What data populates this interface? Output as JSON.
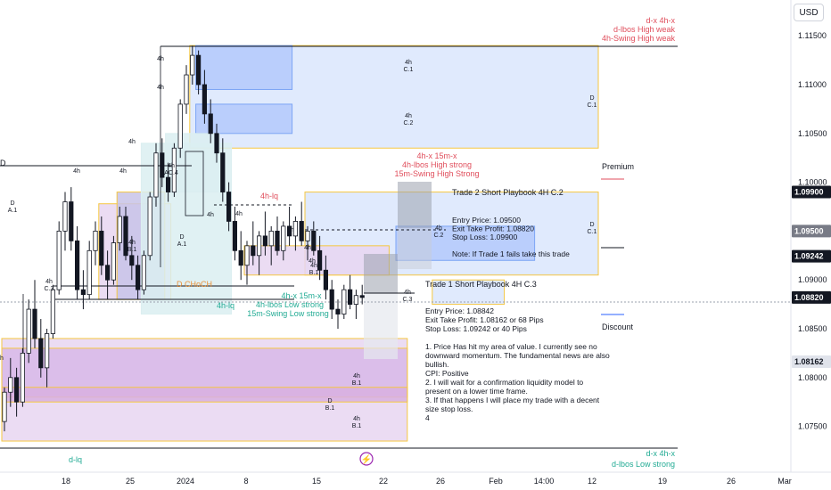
{
  "currency": "USD",
  "chart_data": {
    "type": "candlestick",
    "y_ticks": [
      1.115,
      1.11,
      1.105,
      1.1,
      1.095,
      1.09,
      1.085,
      1.08,
      1.075
    ],
    "y_tick_labels": [
      "1.11500",
      "1.11000",
      "1.10500",
      "1.10000",
      "1.09500",
      "1.09000",
      "1.08500",
      "1.08000",
      "1.07500"
    ],
    "x_ticks": [
      "18",
      "25",
      "2024",
      "8",
      "15",
      "22",
      "26",
      "Feb",
      "14:00",
      "12",
      "19",
      "26",
      "Mar"
    ],
    "price_labels": [
      {
        "value": "1.09900",
        "price": 1.099,
        "color": "#131722"
      },
      {
        "value": "1.09500",
        "price": 1.095,
        "color": "#787b86"
      },
      {
        "value": "1.09242",
        "price": 1.09242,
        "color": "#131722"
      },
      {
        "value": "1.08820",
        "price": 1.0882,
        "color": "#131722"
      },
      {
        "value": "1.08162",
        "price": 1.08162,
        "color": "#e0e3eb"
      }
    ],
    "candles": [
      [
        1.0755,
        1.079,
        1.0745,
        1.0785
      ],
      [
        1.0785,
        1.082,
        1.077,
        1.08
      ],
      [
        1.08,
        1.081,
        1.076,
        1.0775
      ],
      [
        1.0775,
        1.083,
        1.077,
        1.0825
      ],
      [
        1.0825,
        1.088,
        1.0815,
        1.087
      ],
      [
        1.087,
        1.09,
        1.083,
        1.084
      ],
      [
        1.084,
        1.086,
        1.08,
        1.081
      ],
      [
        1.081,
        1.085,
        1.079,
        1.0845
      ],
      [
        1.0845,
        1.0895,
        1.084,
        1.089
      ],
      [
        1.089,
        1.096,
        1.0885,
        1.095
      ],
      [
        1.095,
        1.099,
        1.093,
        1.098
      ],
      [
        1.098,
        1.0995,
        1.093,
        1.094
      ],
      [
        1.094,
        1.0955,
        1.088,
        1.089
      ],
      [
        1.089,
        1.091,
        1.087,
        1.0885
      ],
      [
        1.0885,
        1.094,
        1.088,
        1.093
      ],
      [
        1.093,
        1.096,
        1.0915,
        1.095
      ],
      [
        1.095,
        1.0965,
        1.0905,
        1.0915
      ],
      [
        1.0915,
        1.093,
        1.088,
        1.09
      ],
      [
        1.09,
        1.0945,
        1.0895,
        1.0938
      ],
      [
        1.0938,
        1.0975,
        1.093,
        1.0965
      ],
      [
        1.0965,
        1.0975,
        1.092,
        1.0925
      ],
      [
        1.0925,
        1.0945,
        1.09,
        1.0915
      ],
      [
        1.0915,
        1.0925,
        1.088,
        1.089
      ],
      [
        1.089,
        1.093,
        1.0885,
        1.0925
      ],
      [
        1.0925,
        1.099,
        1.092,
        1.0985
      ],
      [
        1.0985,
        1.104,
        1.0975,
        1.103
      ],
      [
        1.103,
        1.1045,
        1.0995,
        1.1005
      ],
      [
        1.1005,
        1.102,
        1.098,
        1.099
      ],
      [
        1.099,
        1.104,
        1.0985,
        1.1035
      ],
      [
        1.1035,
        1.1085,
        1.1025,
        1.108
      ],
      [
        1.108,
        1.112,
        1.107,
        1.111
      ],
      [
        1.111,
        1.114,
        1.11,
        1.113
      ],
      [
        1.113,
        1.1135,
        1.109,
        1.11
      ],
      [
        1.11,
        1.1115,
        1.106,
        1.107
      ],
      [
        1.107,
        1.1085,
        1.104,
        1.105
      ],
      [
        1.105,
        1.106,
        1.102,
        1.103
      ],
      [
        1.103,
        1.1045,
        1.098,
        1.099
      ],
      [
        1.099,
        1.1,
        1.095,
        1.096
      ],
      [
        1.096,
        1.0975,
        1.092,
        1.093
      ],
      [
        1.093,
        1.095,
        1.09,
        1.0915
      ],
      [
        1.0915,
        1.094,
        1.0895,
        1.0935
      ],
      [
        1.0935,
        1.096,
        1.0915,
        1.0925
      ],
      [
        1.0925,
        1.095,
        1.0905,
        1.0945
      ],
      [
        1.0945,
        1.097,
        1.0925,
        1.0935
      ],
      [
        1.0935,
        1.0955,
        1.0915,
        1.095
      ],
      [
        1.095,
        1.0965,
        1.0925,
        1.093
      ],
      [
        1.093,
        1.096,
        1.092,
        1.0955
      ],
      [
        1.0955,
        1.0975,
        1.0935,
        1.0945
      ],
      [
        1.0945,
        1.0965,
        1.093,
        1.096
      ],
      [
        1.096,
        1.098,
        1.0935,
        1.094
      ],
      [
        1.094,
        1.0955,
        1.092,
        1.095
      ],
      [
        1.095,
        1.096,
        1.0925,
        1.093
      ],
      [
        1.093,
        1.0945,
        1.09,
        1.091
      ],
      [
        1.091,
        1.0925,
        1.088,
        1.089
      ],
      [
        1.089,
        1.09,
        1.086,
        1.087
      ],
      [
        1.087,
        1.088,
        1.085,
        1.0865
      ],
      [
        1.0865,
        1.0895,
        1.086,
        1.089
      ],
      [
        1.089,
        1.0905,
        1.087,
        1.0875
      ],
      [
        1.0875,
        1.089,
        1.086,
        1.0884
      ],
      [
        1.0884,
        1.0895,
        1.0875,
        1.0882
      ]
    ],
    "zones": [
      {
        "p1": 1.114,
        "p2": 1.1035,
        "i1": 31,
        "i2": "end",
        "fill": "#dbe6fd",
        "stroke": "#f5c742"
      },
      {
        "p1": 1.114,
        "p2": 1.1095,
        "i1": 32,
        "i2": 47,
        "fill": "#b3c9fb",
        "stroke": "#7da5f5"
      },
      {
        "p1": 1.108,
        "p2": 1.105,
        "i1": 32,
        "i2": 47,
        "fill": "#b3c9fb",
        "stroke": "#7da5f5"
      },
      {
        "p1": 1.099,
        "p2": 1.0905,
        "i1": 50,
        "i2": "end",
        "fill": "#dbe6fd",
        "stroke": "#f5c742"
      },
      {
        "p1": 1.0955,
        "p2": 1.092,
        "i1": 65,
        "i2": 87,
        "fill": "#b3c9fb",
        "stroke": "#7da5f5"
      },
      {
        "p1": 1.09,
        "p2": 1.0875,
        "i1": 71,
        "i2": 82,
        "fill": "#dbe6fd",
        "stroke": "#f5c742"
      },
      {
        "p1": 1.0978,
        "p2": 1.088,
        "i1": 16,
        "i2": 27,
        "fill": "#e8d6f1",
        "stroke": "#f5c742"
      },
      {
        "p1": 1.099,
        "p2": 1.088,
        "i1": 19,
        "i2": 26,
        "fill": "#c8c3e8",
        "stroke": "#f5c742"
      },
      {
        "p1": 1.104,
        "p2": 1.0865,
        "i1": 23,
        "i2": 37,
        "fill": "#dbeff1",
        "stroke": "#dbeff1"
      },
      {
        "p1": 1.105,
        "p2": 1.099,
        "i1": 27,
        "i2": 35,
        "fill": "#dbeff1",
        "stroke": "#dbeff1"
      },
      {
        "p1": 1.0935,
        "p2": 1.0905,
        "i1": 40,
        "i2": 63,
        "fill": "#e8d6f1",
        "stroke": "#f5c742"
      },
      {
        "p1": 1.084,
        "p2": 1.0735,
        "i1": 0,
        "i2": 66,
        "fill": "#e8d6f1",
        "stroke": "#f5c742"
      },
      {
        "p1": 1.083,
        "p2": 1.078,
        "i1": 0,
        "i2": 66,
        "fill": "#d8b8e8",
        "stroke": "#f5c742"
      },
      {
        "p1": 1.079,
        "p2": 1.0775,
        "i1": 0,
        "i2": 66,
        "fill": "#d8b0e0",
        "stroke": "#f5c742"
      }
    ],
    "annotations": [
      {
        "text": "d-x      4h-x",
        "color": "#e04e5c",
        "anchor": "end"
      },
      {
        "text": "d-lbos High weak",
        "color": "#e04e5c",
        "anchor": "end"
      },
      {
        "text": "4h-Swing High weak",
        "color": "#e04e5c",
        "anchor": "end"
      },
      {
        "text": "4h-x      15m-x",
        "color": "#e04e5c",
        "anchor": "middle"
      },
      {
        "text": "4h-lbos High strong",
        "color": "#e04e5c",
        "anchor": "middle"
      },
      {
        "text": "15m-Swing High Strong",
        "color": "#e04e5c",
        "anchor": "middle"
      },
      {
        "text": "4h-lq",
        "color": "#e04e5c",
        "anchor": "start"
      },
      {
        "text": "D CHoCH",
        "color": "#e8913a",
        "anchor": "start"
      },
      {
        "text": "4h-lq",
        "color": "#22ab94",
        "anchor": "start"
      },
      {
        "text": "4h-x      15m-x",
        "color": "#22ab94",
        "anchor": "middle"
      },
      {
        "text": "4h-lbos Low strong",
        "color": "#22ab94",
        "anchor": "middle"
      },
      {
        "text": "15m-Swing Low strong",
        "color": "#22ab94",
        "anchor": "middle"
      },
      {
        "text": "d-x      4h-x",
        "color": "#22ab94",
        "anchor": "end"
      },
      {
        "text": "d-lbos Low strong",
        "color": "#22ab94",
        "anchor": "end"
      },
      {
        "text": "d-lq",
        "color": "#22ab94",
        "anchor": "start"
      },
      {
        "text": "Premium",
        "color": "#131722",
        "anchor": "start"
      },
      {
        "text": "Discount",
        "color": "#131722",
        "anchor": "start"
      },
      {
        "text": "D",
        "color": "#131722",
        "anchor": "start"
      }
    ],
    "zone_labels": [
      [
        "4h",
        "C.1"
      ],
      [
        "4h",
        "C.2"
      ],
      [
        "D",
        "C.1"
      ],
      [
        "D",
        "C.1"
      ],
      [
        "4h",
        "C.2"
      ],
      [
        "4h",
        "C.3"
      ],
      [
        "4h",
        "B.1"
      ],
      [
        "D",
        "A.1"
      ],
      [
        "4h",
        "AC.4"
      ],
      [
        "D",
        "A.1"
      ],
      [
        "4h",
        "B.1"
      ],
      [
        "4h",
        "B.1"
      ],
      [
        "D",
        "B.1"
      ],
      [
        "4h",
        "B.1"
      ],
      [
        "4h",
        "C.3"
      ]
    ],
    "small_labels": [
      "4h",
      "4h",
      "4h",
      "4h",
      "4h",
      "4h",
      "4h",
      "4h",
      "4h",
      "4h",
      "4h"
    ],
    "trade2": {
      "title": "Trade 2 Short Playbook 4H C.2",
      "lines": [
        "Entry Price:  1.09500",
        "Exit Take Profit:  1.08820",
        "Stop Loss: 1.09900",
        "",
        "Note: If Trade 1 fails take this trade"
      ]
    },
    "trade1": {
      "title": "Trade 1 Short Playbook 4H C.3",
      "lines": [
        "Entry Price: 1.08842",
        "Exit Take Profit: 1.08162 or 68 Pips",
        "Stop Loss: 1.09242 or 40 Pips",
        "",
        "1. Price Has hit my area of value. I currently see no",
        "downward momentum. The fundamental news are also",
        "bullish.",
        "CPI: Positive",
        "2. I will wait for a confirmation liquidity model to",
        "present on a lower time frame.",
        "3. If that happens I will place my trade with a decent",
        "size stop loss.",
        "4"
      ]
    },
    "colors": {
      "up": "#26a69a",
      "down": "#ef5350",
      "candle": "#131722",
      "axis_text": "#131722"
    }
  }
}
